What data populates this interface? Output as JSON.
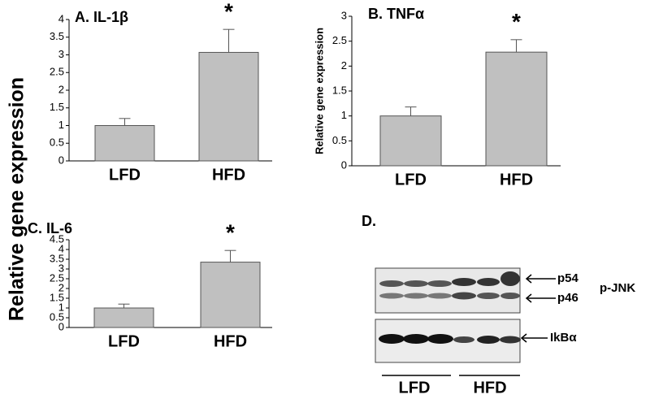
{
  "shared_ylabel": "Relative gene expression",
  "chart_data": [
    {
      "type": "bar",
      "title": "A.  IL-1β",
      "categories": [
        "LFD",
        "HFD"
      ],
      "values": [
        1.0,
        3.07
      ],
      "errors": [
        0.2,
        0.65
      ],
      "annotation": "*",
      "color": "#c0c0c0",
      "ylim": [
        0,
        4
      ],
      "yticks": [
        0,
        0.5,
        1,
        1.5,
        2,
        2.5,
        3,
        3.5,
        4
      ]
    },
    {
      "type": "bar",
      "title": "B. TNFα",
      "ylabel": "Relative gene expression",
      "categories": [
        "LFD",
        "HFD"
      ],
      "values": [
        1.0,
        2.28
      ],
      "errors": [
        0.18,
        0.25
      ],
      "annotation": "*",
      "color": "#c0c0c0",
      "ylim": [
        0,
        3
      ],
      "yticks": [
        0,
        0.5,
        1,
        1.5,
        2,
        2.5,
        3
      ]
    },
    {
      "type": "bar",
      "title": "C.  IL-6",
      "categories": [
        "LFD",
        "HFD"
      ],
      "values": [
        1.0,
        3.35
      ],
      "errors": [
        0.2,
        0.6
      ],
      "annotation": "*",
      "color": "#c0c0c0",
      "ylim": [
        0,
        4.5
      ],
      "yticks": [
        0,
        0.5,
        1,
        1.5,
        2,
        2.5,
        3,
        3.5,
        4,
        4.5
      ]
    }
  ],
  "blot": {
    "title": "D.",
    "bands": [
      "p54",
      "p46"
    ],
    "target": "p-JNK",
    "second": "IkBα",
    "groups": [
      "LFD",
      "HFD"
    ]
  }
}
